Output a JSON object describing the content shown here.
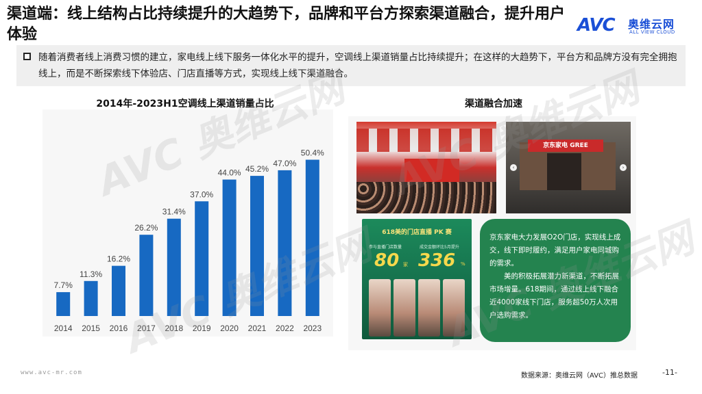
{
  "header": {
    "title": "渠道端：线上结构占比持续提升的大趋势下，品牌和平台方探索渠道融合，提升用户体验",
    "logo_mark": "AVC",
    "logo_cn": "奥维云网",
    "logo_en": "ALL VIEW CLOUD"
  },
  "intro": {
    "text": "随着消费者线上消费习惯的建立，家电线上线下服务一体化水平的提升，空调线上渠道销量占比持续提升；在这样的大趋势下，平台方和品牌方没有完全拥抱线上，而是不断探索线下体验店、门店直播等方式，实现线上线下渠道融合。"
  },
  "left_title": "2014年-2023H1空调线上渠道销量占比",
  "right_title": "渠道融合加速",
  "chart_data": {
    "type": "bar",
    "categories": [
      "2014",
      "2015",
      "2016",
      "2017",
      "2018",
      "2019",
      "2020",
      "2021",
      "2022",
      "2023"
    ],
    "values": [
      7.7,
      11.3,
      16.2,
      26.2,
      31.4,
      37.0,
      44.0,
      45.2,
      47.0,
      50.4
    ],
    "value_labels": [
      "7.7%",
      "11.3%",
      "16.2%",
      "26.2%",
      "31.4%",
      "37.0%",
      "44.0%",
      "45.2%",
      "47.0%",
      "50.4%"
    ],
    "title": "2014年-2023H1空调线上渠道销量占比",
    "ylim": [
      0,
      60
    ],
    "grid": false,
    "bar_color": "#1769c2"
  },
  "photos": {
    "store_sign": "京东家电 GREE"
  },
  "poster": {
    "title": "618美的门店直播 PK 赛",
    "label1": "参与直播门店数量",
    "label2": "成交金额环比5月提升",
    "num1": "80",
    "num1_unit": "家",
    "num2": "336",
    "num2_unit": "%"
  },
  "textbox": {
    "p1": "京东家电大力发展O2O门店，实现线上成交，线下即时履约，满足用户家电同城购的需求。",
    "p2": "美的积极拓展潜力新渠道，不断拓展市场增量。618期间，通过线上线下融合近4000家线下门店，服务超50万人次用户选购需求。"
  },
  "footer": {
    "url": "www.avc-mr.com",
    "source": "数据来源：奥维云网（AVC）推总数据",
    "page": "-11-"
  },
  "watermark": "AVC 奥维云网"
}
